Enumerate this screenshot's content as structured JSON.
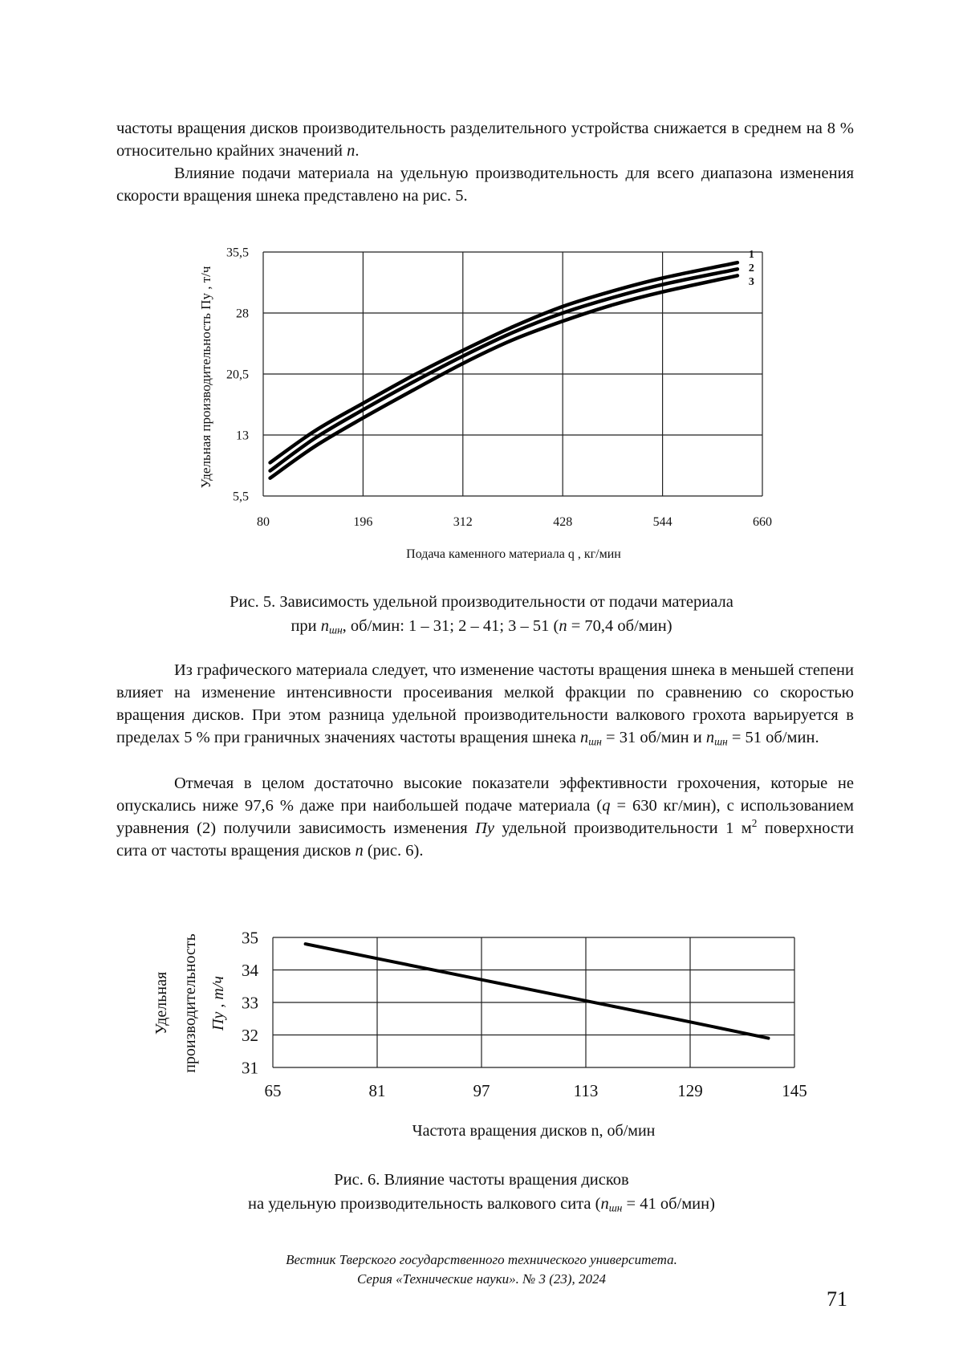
{
  "paragraphs": [
    {
      "indent": false,
      "top": 146,
      "segments": [
        {
          "t": "частоты вращения дисков производительность разделительного устройства снижается в среднем на 8 % относительно крайних значений "
        },
        {
          "t": "n",
          "s": "i"
        },
        {
          "t": "."
        }
      ]
    },
    {
      "indent": true,
      "top": 202,
      "segments": [
        {
          "t": "Влияние подачи материала на удельную производительность для всего диапазона изменения скорости вращения шнека представлено на рис. 5."
        }
      ]
    },
    {
      "indent": true,
      "top": 821,
      "segments": [
        {
          "t": "Из графического материала следует, что изменение частоты вращения шнека в меньшей степени влияет на изменение интенсивности просеивания мелкой фракции по сравнению со скоростью вращения дисков. При этом разница удельной производительности валкового грохота варьируется в пределах 5 % при граничных значениях частоты вращения шнека "
        },
        {
          "t": "n",
          "s": "i"
        },
        {
          "t": "шн",
          "s": "sub"
        },
        {
          "t": " = 31 об/мин и "
        },
        {
          "t": "n",
          "s": "i"
        },
        {
          "t": "шн",
          "s": "sub"
        },
        {
          "t": " = 51 об/мин."
        }
      ]
    },
    {
      "indent": true,
      "top": 962,
      "segments": [
        {
          "t": "Отмечая в целом достаточно высокие показатели эффективности грохочения, которые не опускались ниже 97,6 % даже при наибольшей подаче материала ("
        },
        {
          "t": "q",
          "s": "i"
        },
        {
          "t": " = 630 кг/мин), с использованием уравнения (2) получили зависимость изменения "
        },
        {
          "t": "Пу",
          "s": "i"
        },
        {
          "t": " удельной производительности 1 м"
        },
        {
          "t": "2",
          "s": "sup"
        },
        {
          "t": " поверхности сита от частоты вращения дисков "
        },
        {
          "t": "n",
          "s": "i"
        },
        {
          "t": " (рис. 6)."
        }
      ]
    }
  ],
  "captions": [
    {
      "top": 735,
      "lines": [
        [
          {
            "t": "Рис. 5. Зависимость удельной производительности от подачи материала"
          }
        ],
        [
          {
            "t": "при "
          },
          {
            "t": "n",
            "s": "i"
          },
          {
            "t": "шн",
            "s": "sub"
          },
          {
            "t": ", об/мин: 1 – 31; 2 – 41; 3 – 51 ("
          },
          {
            "t": "n",
            "s": "i"
          },
          {
            "t": " = 70,4 об/мин)"
          }
        ]
      ]
    },
    {
      "top": 1455,
      "lines": [
        [
          {
            "t": "Рис. 6. Влияние частоты вращения дисков"
          }
        ],
        [
          {
            "t": "на удельную производительность валкового сита ("
          },
          {
            "t": "n",
            "s": "i"
          },
          {
            "t": "шн",
            "s": "sub"
          },
          {
            "t": " = 41 об/мин)"
          }
        ]
      ]
    }
  ],
  "footer": {
    "journal_line1": "Вестник Тверского государственного технического университета.",
    "journal_line2": "Серия «Технические науки». № 3 (23), 2024",
    "page_number": "71"
  },
  "chart_data": [
    {
      "type": "line",
      "xlabel": "Подача каменного материала q , кг/мин",
      "ylabel": "Удельная производительность Пу , т/ч",
      "xlim": [
        80,
        660
      ],
      "ylim": [
        5.5,
        35.5
      ],
      "xticks": [
        "80",
        "196",
        "312",
        "428",
        "544",
        "660"
      ],
      "yticks": [
        "5,5",
        "13",
        "20,5",
        "28",
        "35,5"
      ],
      "grid": true,
      "x": [
        88,
        140,
        196,
        254,
        312,
        370,
        428,
        486,
        544,
        631
      ],
      "series": [
        {
          "name": "1",
          "values": [
            9.6,
            13.5,
            16.9,
            20.3,
            23.4,
            26.3,
            28.8,
            30.7,
            32.3,
            34.2
          ]
        },
        {
          "name": "2",
          "values": [
            8.6,
            12.6,
            16.1,
            19.5,
            22.7,
            25.6,
            28.0,
            29.9,
            31.5,
            33.4
          ]
        },
        {
          "name": "3",
          "values": [
            7.7,
            11.6,
            15.1,
            18.5,
            21.8,
            24.7,
            27.0,
            29.0,
            30.6,
            32.6
          ]
        }
      ],
      "legend": "curve labels at right end"
    },
    {
      "type": "line",
      "xlabel": "Частота вращения дисков n, об/мин",
      "ylabel_lines": [
        "Удельная",
        "производительность",
        "Пу , т/ч"
      ],
      "xlim": [
        65,
        145
      ],
      "ylim": [
        31,
        35
      ],
      "xticks": [
        "65",
        "81",
        "97",
        "113",
        "129",
        "145"
      ],
      "yticks": [
        "31",
        "32",
        "33",
        "34",
        "35"
      ],
      "grid": true,
      "x": [
        70,
        81,
        97,
        113,
        129,
        141
      ],
      "series": [
        {
          "values": [
            34.8,
            34.35,
            33.7,
            33.05,
            32.4,
            31.9
          ]
        }
      ]
    }
  ]
}
